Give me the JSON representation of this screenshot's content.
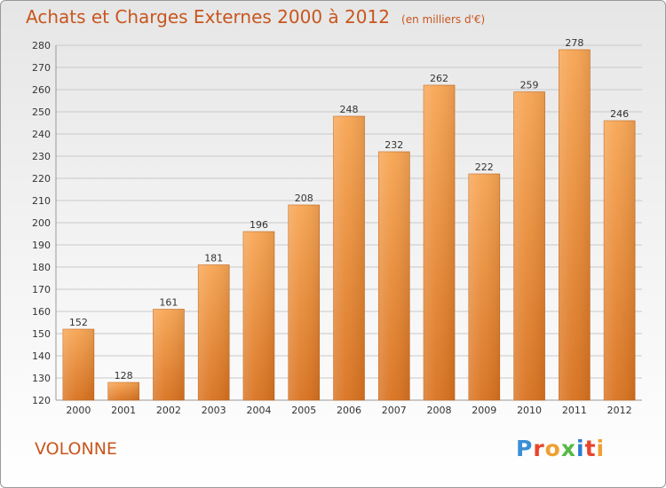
{
  "header": {
    "title": "Achats et Charges Externes 2000 à 2012",
    "subtitle": "(en milliers d'€)"
  },
  "footer": {
    "commune": "VOLONNE",
    "logo_text": "Proxiti",
    "logo_colors": [
      "#3a8fd6",
      "#e8452c",
      "#f0a030",
      "#56b947",
      "#2b7cd3",
      "#e8452c",
      "#f0a030"
    ]
  },
  "chart_data": {
    "type": "bar",
    "categories": [
      "2000",
      "2001",
      "2002",
      "2003",
      "2004",
      "2005",
      "2006",
      "2007",
      "2008",
      "2009",
      "2010",
      "2011",
      "2012"
    ],
    "values": [
      152,
      128,
      161,
      181,
      196,
      208,
      248,
      232,
      262,
      222,
      259,
      278,
      246
    ],
    "title": "Achats et Charges Externes 2000 à 2012",
    "subtitle": "(en milliers d'€)",
    "ylim": [
      120,
      280
    ],
    "yticks": [
      120,
      130,
      140,
      150,
      160,
      170,
      180,
      190,
      200,
      210,
      220,
      230,
      240,
      250,
      260,
      270,
      280
    ],
    "grid": true,
    "bar_color": "#f08a30"
  }
}
